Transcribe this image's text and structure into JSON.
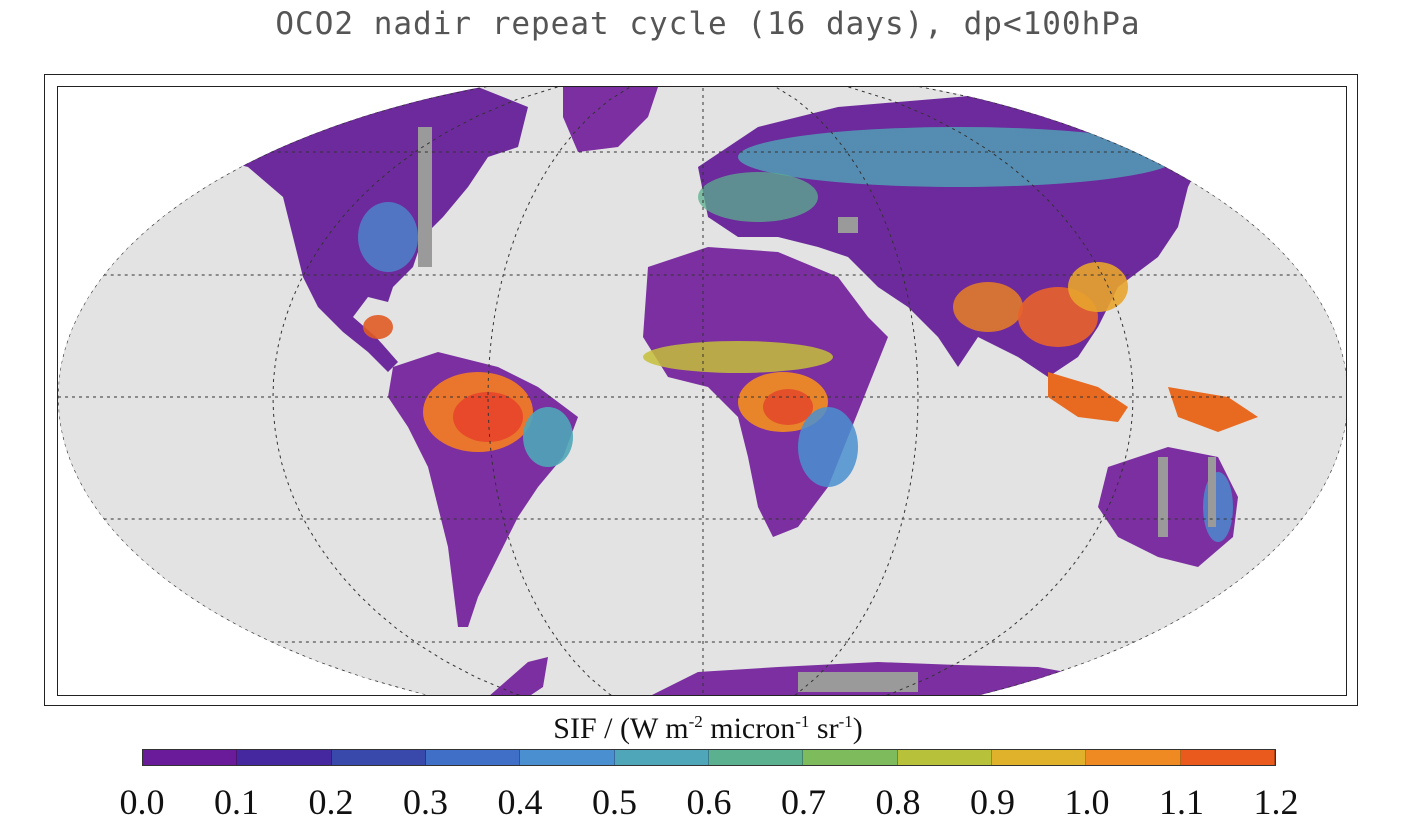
{
  "title": "OCO2 nadir repeat cycle (16 days), dp<100hPa",
  "colorbar": {
    "label_main": "SIF / (W m",
    "label_exp1": "-2",
    "label_mid": " micron",
    "label_exp2": "-1",
    "label_sr": " sr",
    "label_exp3": "-1",
    "label_end": ")",
    "ticks": [
      "0.0",
      "0.1",
      "0.2",
      "0.3",
      "0.4",
      "0.5",
      "0.6",
      "0.7",
      "0.8",
      "0.9",
      "1.0",
      "1.1",
      "1.2"
    ],
    "colors": [
      "#6a1b9a",
      "#4527a0",
      "#3949ab",
      "#3f6fc7",
      "#4a8fd0",
      "#4fa6b8",
      "#5bb08f",
      "#7dbb5c",
      "#b7c23a",
      "#e0b22c",
      "#ef8a22",
      "#ea5a1c",
      "#e0251c"
    ]
  },
  "map": {
    "ocean_color": "#e3e3e3",
    "nodata_color": "#9a9a9a",
    "grid_color": "#333333",
    "land_base_color": "#7b2fa0"
  }
}
